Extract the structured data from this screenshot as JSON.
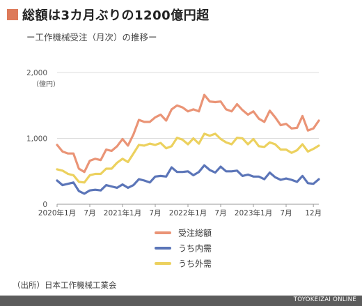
{
  "header": {
    "title": "総額は3カ月ぶりの1200億円超",
    "subtitle": "ー工作機械受注（月次）の推移ー",
    "accent_color": "#dd7a5a"
  },
  "source": "（出所）日本工作機械工業会",
  "credit": "TOYOKEIZAI ONLINE",
  "chart_data": {
    "type": "line",
    "x_tick_labels": [
      "2020年1月",
      "7月",
      "2021年1月",
      "7月",
      "2022年1月",
      "7月",
      "2023年1月",
      "7月",
      "12月"
    ],
    "ylabel": "（億円）",
    "ylim": [
      0,
      2000
    ],
    "y_tick_labels": [
      "0",
      "1,000",
      "2,000"
    ],
    "grid": true,
    "legend_position": "bottom-center",
    "series": [
      {
        "name": "受注総額",
        "color": "#ea9476",
        "values": [
          900,
          800,
          770,
          770,
          540,
          490,
          660,
          690,
          670,
          830,
          810,
          880,
          990,
          890,
          1060,
          1280,
          1250,
          1250,
          1320,
          1360,
          1270,
          1440,
          1500,
          1470,
          1410,
          1440,
          1410,
          1660,
          1560,
          1550,
          1560,
          1440,
          1410,
          1520,
          1430,
          1360,
          1410,
          1300,
          1250,
          1420,
          1320,
          1200,
          1220,
          1150,
          1160,
          1340,
          1120,
          1150,
          1270
        ]
      },
      {
        "name": "うち内需",
        "color": "#5b75b8",
        "values": [
          360,
          290,
          310,
          330,
          200,
          160,
          210,
          220,
          210,
          290,
          270,
          250,
          300,
          250,
          290,
          380,
          360,
          330,
          420,
          430,
          420,
          560,
          490,
          490,
          500,
          440,
          490,
          590,
          520,
          480,
          570,
          500,
          500,
          510,
          430,
          450,
          420,
          420,
          380,
          480,
          410,
          370,
          390,
          370,
          340,
          430,
          320,
          310,
          380
        ]
      },
      {
        "name": "うち外需",
        "color": "#ecd15e",
        "values": [
          530,
          510,
          460,
          440,
          340,
          330,
          440,
          460,
          460,
          540,
          540,
          630,
          690,
          640,
          770,
          900,
          890,
          920,
          900,
          930,
          850,
          880,
          1010,
          980,
          910,
          1000,
          920,
          1070,
          1040,
          1070,
          990,
          940,
          910,
          1010,
          1000,
          910,
          990,
          880,
          870,
          940,
          910,
          830,
          830,
          780,
          820,
          910,
          800,
          840,
          890
        ]
      }
    ]
  }
}
